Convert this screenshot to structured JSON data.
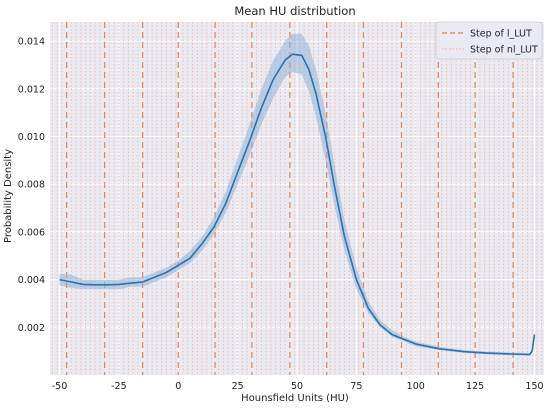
{
  "chart_data": {
    "type": "line",
    "title": "Mean HU distribution",
    "xlabel": "Hounsfield Units (HU)",
    "ylabel": "Probability Density",
    "xlim": [
      -54,
      154
    ],
    "ylim": [
      0.0,
      0.0148
    ],
    "x_ticks": [
      -50,
      -25,
      0,
      25,
      50,
      75,
      100,
      125,
      150
    ],
    "y_ticks": [
      0.002,
      0.004,
      0.006,
      0.008,
      0.01,
      0.012,
      0.014
    ],
    "grid": true,
    "legend_position": "top-right",
    "colors": {
      "line": "#2a73b0",
      "band": "#8fb3d9",
      "l_lut_step": "#e8875a",
      "nl_lut_step": "#f2b8a8",
      "plot_background": "#eaeaf2",
      "grid": "#ffffff"
    },
    "series": [
      {
        "name": "Mean HU",
        "x": [
          -50,
          -45,
          -40,
          -35,
          -30,
          -25,
          -20,
          -15,
          -10,
          -5,
          0,
          5,
          10,
          15,
          20,
          25,
          30,
          35,
          40,
          45,
          48,
          52,
          55,
          58,
          62,
          66,
          70,
          75,
          80,
          85,
          90,
          95,
          100,
          110,
          120,
          130,
          140,
          148,
          149,
          150
        ],
        "y": [
          0.004,
          0.0039,
          0.0038,
          0.00378,
          0.00378,
          0.0038,
          0.00385,
          0.0039,
          0.0041,
          0.0043,
          0.0046,
          0.0049,
          0.0055,
          0.0062,
          0.0072,
          0.0085,
          0.0098,
          0.0112,
          0.0124,
          0.0132,
          0.01345,
          0.0134,
          0.0128,
          0.0118,
          0.01,
          0.0078,
          0.0058,
          0.004,
          0.0028,
          0.0021,
          0.0017,
          0.0015,
          0.0013,
          0.0011,
          0.00098,
          0.00092,
          0.00088,
          0.00086,
          0.001,
          0.0017
        ],
        "lower": [
          0.00375,
          0.00365,
          0.0036,
          0.0036,
          0.0036,
          0.0036,
          0.0037,
          0.0037,
          0.0039,
          0.0041,
          0.0044,
          0.0047,
          0.0052,
          0.0059,
          0.0068,
          0.008,
          0.0092,
          0.0105,
          0.0116,
          0.0125,
          0.0127,
          0.0126,
          0.0119,
          0.0108,
          0.009,
          0.007,
          0.0052,
          0.0036,
          0.0026,
          0.002,
          0.0016,
          0.0014,
          0.0012,
          0.00105,
          0.00093,
          0.00087,
          0.00083,
          0.00081,
          0.00095,
          0.0016
        ],
        "upper": [
          0.00425,
          0.0042,
          0.004,
          0.004,
          0.004,
          0.004,
          0.0041,
          0.0041,
          0.0043,
          0.0045,
          0.0048,
          0.0052,
          0.0058,
          0.0066,
          0.0077,
          0.0091,
          0.0105,
          0.012,
          0.0132,
          0.014,
          0.0143,
          0.0143,
          0.0138,
          0.0128,
          0.011,
          0.0087,
          0.0065,
          0.0045,
          0.0031,
          0.0023,
          0.0019,
          0.0016,
          0.0014,
          0.00118,
          0.00105,
          0.00098,
          0.00094,
          0.00092,
          0.00105,
          0.0018
        ]
      }
    ],
    "vlines": {
      "l_lut": {
        "name": "Step of l_LUT",
        "x": [
          -47,
          -31,
          -15,
          0,
          15.5,
          31,
          47,
          62.5,
          78,
          94,
          109.5,
          125,
          141
        ]
      },
      "nl_lut": {
        "name": "Step of nl_LUT",
        "x": [
          -53,
          -51,
          -49,
          -45,
          -43,
          -41,
          -39,
          -37,
          -35,
          -33,
          -29,
          -27,
          -25,
          -23,
          -21,
          -19,
          -17,
          -13,
          -11,
          -9,
          -7,
          -5,
          -3,
          -1,
          2,
          4,
          6,
          8,
          10,
          12,
          14,
          17,
          19,
          21,
          23,
          25,
          27,
          29,
          33,
          35,
          37,
          39,
          41,
          43,
          45,
          49,
          51,
          53,
          55,
          57,
          59,
          61,
          64,
          66,
          68,
          70,
          72,
          74,
          76,
          80,
          82,
          84,
          86,
          88,
          90,
          92,
          96,
          98,
          100,
          102,
          104,
          106,
          108,
          111,
          113,
          115,
          117,
          119,
          121,
          123,
          127,
          129,
          131,
          133,
          135,
          137,
          139,
          143,
          145,
          147,
          149,
          151,
          153
        ]
      }
    }
  }
}
